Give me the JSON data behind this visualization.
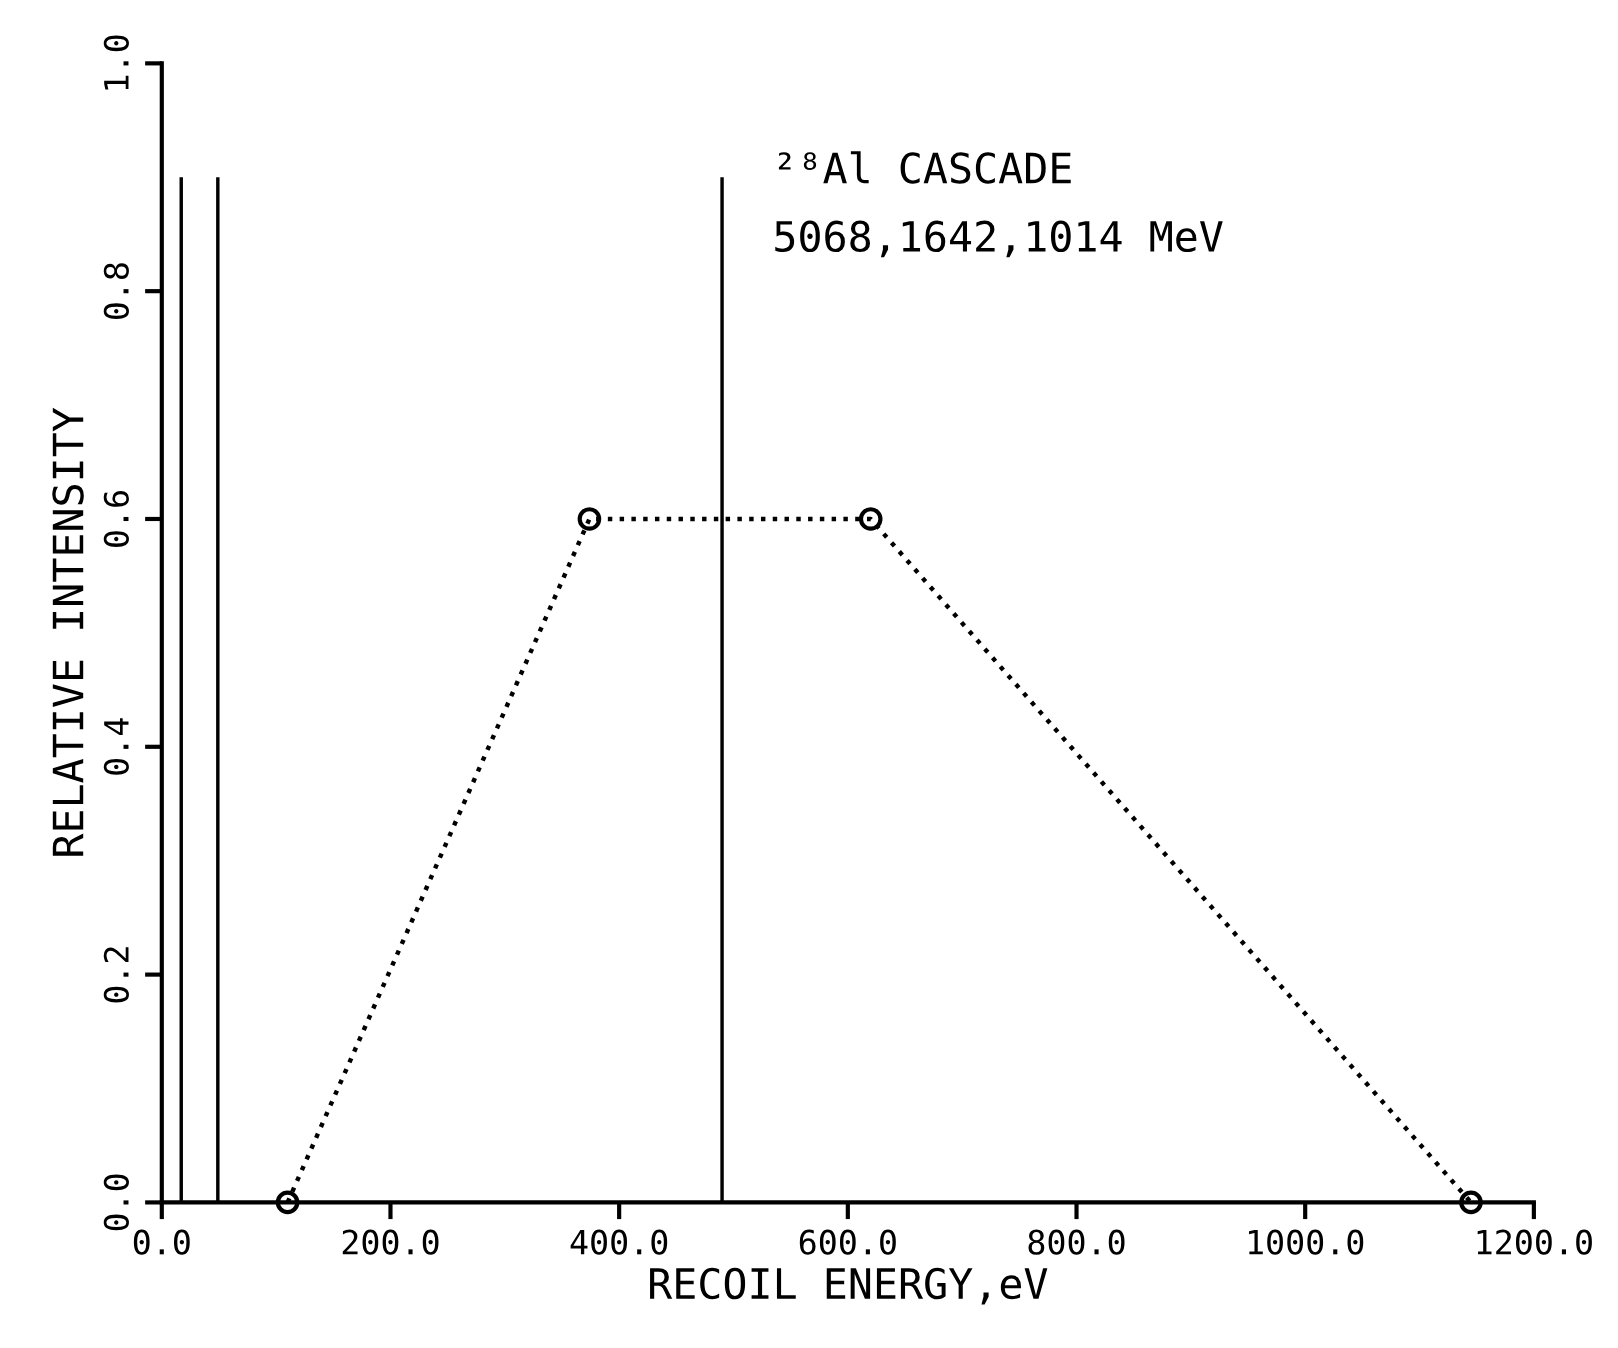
{
  "chart_data": {
    "type": "line",
    "xlabel": "RECOIL ENERGY,eV",
    "ylabel": "RELATIVE INTENSITY",
    "annotations": [
      "²⁸Al CASCADE",
      "5068,1642,1014 MeV"
    ],
    "series": [
      {
        "type": "bar",
        "color": "#000000",
        "x": [
          17,
          49,
          490
        ],
        "values": [
          0.9,
          0.9,
          0.9
        ]
      },
      {
        "color": "#000000",
        "x": [
          110,
          374,
          620,
          1145
        ],
        "values": [
          0,
          0.6,
          0.6,
          0
        ],
        "marker": "circle",
        "line_style": "dotted"
      }
    ],
    "xlim": [
      0,
      1200
    ],
    "ylim": [
      0,
      1.0
    ],
    "xticks": [
      {
        "value": 0,
        "label": "0.0"
      },
      {
        "value": 200,
        "label": "200.0"
      },
      {
        "value": 400,
        "label": "400.0"
      },
      {
        "value": 600,
        "label": "600.0"
      },
      {
        "value": 800,
        "label": "800.0"
      },
      {
        "value": 1000,
        "label": "1000.0"
      },
      {
        "value": 1200,
        "label": "1200.0"
      }
    ],
    "yticks": [
      {
        "value": 0,
        "label": "0.0"
      },
      0.2,
      0.4,
      0.6,
      0.8,
      {
        "value": 1,
        "label": "1.0"
      }
    ],
    "grid": false,
    "legend": false
  }
}
